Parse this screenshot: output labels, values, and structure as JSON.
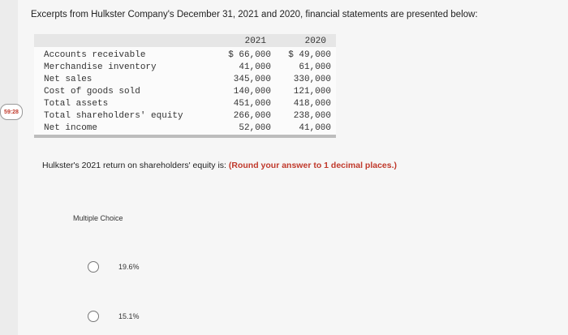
{
  "timer": "59:28",
  "intro": "Excerpts from Hulkster Company's December 31, 2021 and 2020, financial statements are presented below:",
  "table": {
    "years": [
      "2021",
      "2020"
    ],
    "rows": [
      {
        "label": "Accounts receivable",
        "v2021": "$ 66,000",
        "v2020": "$ 49,000"
      },
      {
        "label": "Merchandise inventory",
        "v2021": "41,000",
        "v2020": "61,000"
      },
      {
        "label": "Net sales",
        "v2021": "345,000",
        "v2020": "330,000"
      },
      {
        "label": "Cost of goods sold",
        "v2021": "140,000",
        "v2020": "121,000"
      },
      {
        "label": "Total assets",
        "v2021": "451,000",
        "v2020": "418,000"
      },
      {
        "label": "Total shareholders' equity",
        "v2021": "266,000",
        "v2020": "238,000"
      },
      {
        "label": "Net income",
        "v2021": "52,000",
        "v2020": "41,000"
      }
    ]
  },
  "question": {
    "text": "Hulkster's 2021 return on shareholders' equity is:",
    "instruction": "(Round your answer to 1 decimal places.)"
  },
  "multiple_choice_label": "Multiple Choice",
  "options": [
    "19.6%",
    "15.1%"
  ]
}
